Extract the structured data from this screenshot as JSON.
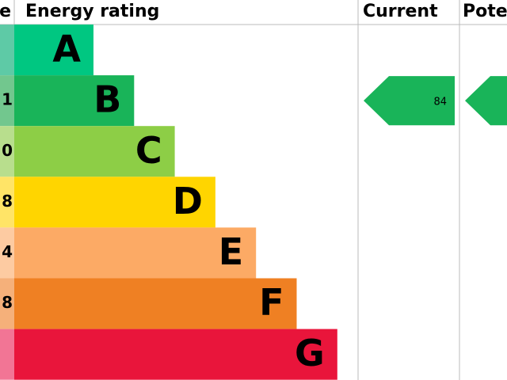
{
  "header": {
    "score": "e",
    "rating": "Energy rating",
    "current": "Current",
    "potential": "Pote"
  },
  "bands": [
    {
      "letter": "A",
      "score": null,
      "color": "#00c781",
      "light": "#5ecaa6"
    },
    {
      "letter": "B",
      "score": "1",
      "color": "#19b459",
      "light": "#72c78e"
    },
    {
      "letter": "C",
      "score": "0",
      "color": "#8dce46",
      "light": "#b8de8d"
    },
    {
      "letter": "D",
      "score": "8",
      "color": "#ffd500",
      "light": "#ffe467"
    },
    {
      "letter": "E",
      "score": "4",
      "color": "#fcaa65",
      "light": "#fdcba2"
    },
    {
      "letter": "F",
      "score": "8",
      "color": "#ef8023",
      "light": "#f5b07a"
    },
    {
      "letter": "G",
      "score": null,
      "color": "#e9153b",
      "light": "#f27595"
    }
  ],
  "current": {
    "value": "84",
    "band": 1,
    "color": "#19b459"
  },
  "potential": {
    "band": 1,
    "color": "#19b459"
  }
}
